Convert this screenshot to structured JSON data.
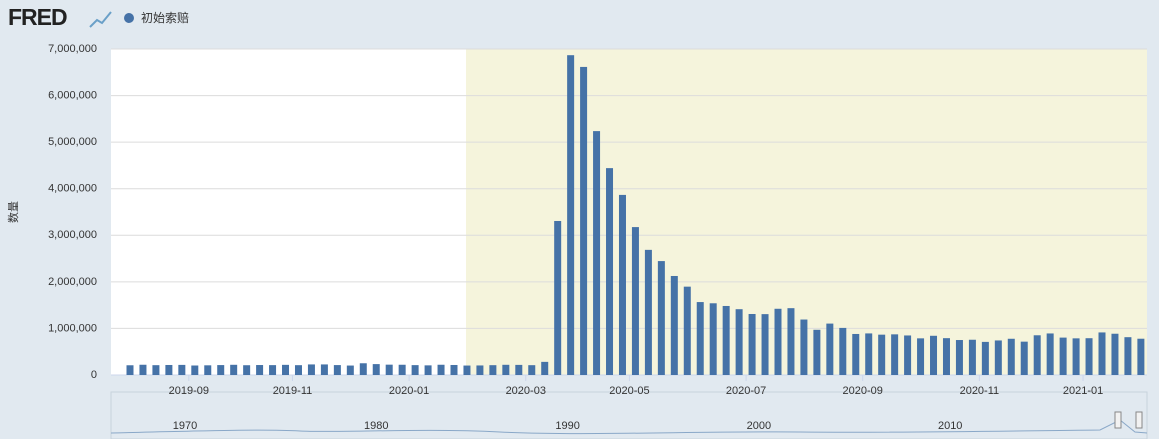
{
  "logo": "FRED",
  "chart_data": {
    "type": "bar",
    "y_label": "数量",
    "categories": [
      null,
      null,
      null,
      null,
      null,
      "2019-09",
      null,
      null,
      null,
      null,
      null,
      null,
      null,
      "2019-11",
      null,
      null,
      null,
      null,
      null,
      null,
      null,
      null,
      "2020-01",
      null,
      null,
      null,
      null,
      null,
      null,
      null,
      null,
      "2020-03",
      null,
      null,
      null,
      null,
      null,
      null,
      null,
      "2020-05",
      null,
      null,
      null,
      null,
      null,
      null,
      null,
      null,
      "2020-07",
      null,
      null,
      null,
      null,
      null,
      null,
      null,
      null,
      "2020-09",
      null,
      null,
      null,
      null,
      null,
      null,
      null,
      null,
      "2020-11",
      null,
      null,
      null,
      null,
      null,
      null,
      null,
      "2021-01",
      null,
      null,
      null,
      null
    ],
    "series": [
      {
        "name": "初始索赔",
        "color": "#4572a7",
        "values": [
          209000,
          220000,
          211000,
          215000,
          217000,
          204000,
          208000,
          213000,
          219000,
          210000,
          214000,
          212000,
          218000,
          211000,
          227000,
          227000,
          213000,
          203000,
          252000,
          234000,
          222000,
          220000,
          212000,
          207000,
          220000,
          215000,
          203000,
          205000,
          211000,
          219000,
          217000,
          211000,
          282000,
          3307000,
          6867000,
          6615000,
          5237000,
          4442000,
          3867000,
          3176000,
          2687000,
          2446000,
          2126000,
          1897000,
          1566000,
          1540000,
          1482000,
          1413000,
          1310000,
          1307000,
          1422000,
          1435000,
          1191000,
          971000,
          1104000,
          1011000,
          881000,
          893000,
          866000,
          873000,
          849000,
          787000,
          842000,
          791000,
          751000,
          757000,
          711000,
          742000,
          778000,
          716000,
          853000,
          892000,
          803000,
          787000,
          790000,
          914000,
          886000,
          812000,
          779000
        ]
      }
    ],
    "ylim": [
      0,
      7000000
    ],
    "yticks": [
      0,
      {
        "value": 1000000,
        "label": "1,000,000"
      },
      {
        "value": 2000000,
        "label": "2,000,000"
      },
      {
        "value": 3000000,
        "label": "3,000,000"
      },
      {
        "value": 4000000,
        "label": "4,000,000"
      },
      {
        "value": 5000000,
        "label": "5,000,000"
      },
      {
        "value": 6000000,
        "label": "6,000,000"
      },
      {
        "value": 7000000,
        "label": "7,000,000"
      }
    ],
    "grid": true,
    "navigator_labels": [
      "1970",
      "1980",
      "1990",
      "2000",
      "2010"
    ]
  }
}
